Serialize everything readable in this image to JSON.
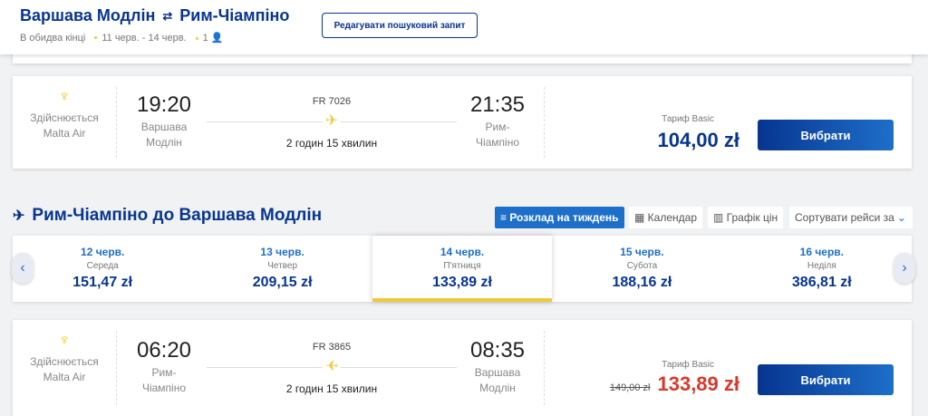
{
  "header": {
    "origin": "Варшава Модлін",
    "destination": "Рим-Чіампіно",
    "trip_type": "В обидва кінці",
    "dates": "11 черв. - 14 черв.",
    "passengers": "1",
    "edit_label": "Редагувати пошуковий запит"
  },
  "outbound_flight": {
    "operator_line1": "Здійснюється",
    "operator_line2": "Malta Air",
    "dep_time": "19:20",
    "dep_airport_l1": "Варшава",
    "dep_airport_l2": "Модлін",
    "flight_no": "FR 7026",
    "duration": "2 годин 15 хвилин",
    "arr_time": "21:35",
    "arr_airport_l1": "Рим-",
    "arr_airport_l2": "Чіампіно",
    "fare_label": "Тариф Basic",
    "price": "104,00 zł",
    "select_label": "Вибрати"
  },
  "return_section": {
    "title": "Рим-Чіампіно до Варшава Модлін",
    "view_tabs": [
      {
        "label": "Розклад на тиждень",
        "active": true
      },
      {
        "label": "Календар",
        "active": false
      },
      {
        "label": "Графік цін",
        "active": false
      }
    ],
    "sort_label": "Сортувати рейси за"
  },
  "date_tabs": [
    {
      "date": "12 черв.",
      "weekday": "Середа",
      "price": "151,47 zł",
      "selected": false
    },
    {
      "date": "13 черв.",
      "weekday": "Четвер",
      "price": "209,15 zł",
      "selected": false
    },
    {
      "date": "14 черв.",
      "weekday": "П'ятниця",
      "price": "133,89 zł",
      "selected": true
    },
    {
      "date": "15 черв.",
      "weekday": "Субота",
      "price": "188,16 zł",
      "selected": false
    },
    {
      "date": "16 черв.",
      "weekday": "Неділя",
      "price": "386,81 zł",
      "selected": false
    }
  ],
  "return_flight": {
    "operator_line1": "Здійснюється",
    "operator_line2": "Malta Air",
    "dep_time": "06:20",
    "dep_airport_l1": "Рим-",
    "dep_airport_l2": "Чіампіно",
    "flight_no": "FR 3865",
    "duration": "2 годин 15 хвилин",
    "arr_time": "08:35",
    "arr_airport_l1": "Варшава",
    "arr_airport_l2": "Модлін",
    "fare_label": "Тариф Basic",
    "old_price": "149,00 zł",
    "price": "133,89 zł",
    "select_label": "Вибрати"
  },
  "colors": {
    "brand": "#073590",
    "accent": "#f1c933",
    "link": "#1d6fc9",
    "sale": "#d8392b"
  }
}
